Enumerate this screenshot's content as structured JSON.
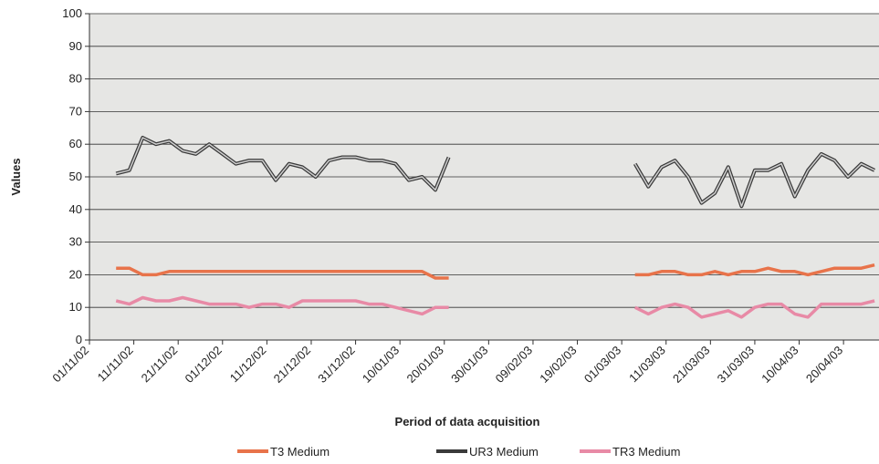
{
  "chart_data": {
    "type": "line",
    "y_label": "Values",
    "x_label": "Period of data acquisition",
    "x": [
      "07/11/02",
      "10/11/02",
      "13/11/02",
      "16/11/02",
      "19/11/02",
      "22/11/02",
      "25/11/02",
      "28/11/02",
      "01/12/02",
      "04/12/02",
      "07/12/02",
      "10/12/02",
      "13/12/02",
      "16/12/02",
      "19/12/02",
      "22/12/02",
      "25/12/02",
      "28/12/02",
      "31/12/02",
      "03/01/03",
      "06/01/03",
      "09/01/03",
      "12/01/03",
      "15/01/03",
      "18/01/03",
      "21/01/03",
      "09/02/03",
      "04/03/03",
      "07/03/03",
      "10/03/03",
      "13/03/03",
      "16/03/03",
      "19/03/03",
      "22/03/03",
      "25/03/03",
      "28/03/03",
      "31/03/03",
      "03/04/03",
      "06/04/03",
      "09/04/03",
      "12/04/03",
      "15/04/03",
      "18/04/03",
      "21/04/03",
      "24/04/03",
      "27/04/03"
    ],
    "series": [
      {
        "name": "T3 Medium",
        "color": "#e8734a",
        "values": [
          22,
          22,
          20,
          20,
          21,
          21,
          21,
          21,
          21,
          21,
          21,
          21,
          21,
          21,
          21,
          21,
          21,
          21,
          21,
          21,
          21,
          21,
          21,
          21,
          19,
          19,
          null,
          20,
          20,
          21,
          21,
          20,
          20,
          21,
          20,
          21,
          21,
          22,
          21,
          21,
          20,
          21,
          22,
          22,
          22,
          23
        ]
      },
      {
        "name": "UR3 Medium",
        "color": "#3a3a3a",
        "values": [
          51,
          52,
          62,
          60,
          61,
          58,
          57,
          60,
          57,
          54,
          55,
          55,
          49,
          54,
          53,
          50,
          55,
          56,
          56,
          55,
          55,
          54,
          49,
          50,
          46,
          56,
          null,
          54,
          47,
          53,
          55,
          50,
          42,
          45,
          53,
          41,
          52,
          52,
          54,
          44,
          52,
          57,
          55,
          50,
          54,
          52
        ]
      },
      {
        "name": "TR3 Medium",
        "color": "#e88aa6",
        "values": [
          12,
          11,
          13,
          12,
          12,
          13,
          12,
          11,
          11,
          11,
          10,
          11,
          11,
          10,
          12,
          12,
          12,
          12,
          12,
          11,
          11,
          10,
          9,
          8,
          10,
          10,
          null,
          10,
          8,
          10,
          11,
          10,
          7,
          8,
          9,
          7,
          10,
          11,
          11,
          8,
          7,
          11,
          11,
          11,
          11,
          12
        ]
      }
    ],
    "xlim": [
      "01/11/02",
      "28/04/03"
    ],
    "xticks": [
      "01/11/02",
      "11/11/02",
      "21/11/02",
      "01/12/02",
      "11/12/02",
      "21/12/02",
      "31/12/02",
      "10/01/03",
      "20/01/03",
      "30/01/03",
      "09/02/03",
      "19/02/03",
      "01/03/03",
      "11/03/03",
      "21/03/03",
      "31/03/03",
      "10/04/03",
      "20/04/03"
    ],
    "ylim": [
      0,
      100
    ],
    "yticks": [
      0,
      10,
      20,
      30,
      40,
      50,
      60,
      70,
      80,
      90,
      100
    ],
    "grid": true,
    "legend": "bottom"
  }
}
